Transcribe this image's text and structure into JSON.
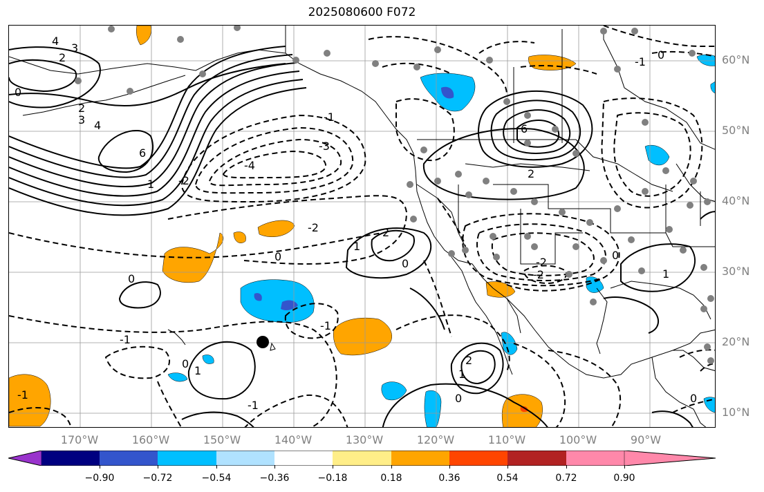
{
  "title": "2025080600 F072",
  "lat_labels": [
    "60°N",
    "50°N",
    "40°N",
    "30°N",
    "20°N",
    "10°N"
  ],
  "lon_labels": [
    "170°W",
    "160°W",
    "150°W",
    "140°W",
    "130°W",
    "120°W",
    "110°W",
    "100°W",
    "90°W"
  ],
  "colorbar": {
    "colors": [
      "#9933cc",
      "#000080",
      "#3355cc",
      "#00bfff",
      "#b0e2ff",
      "#ffffff",
      "#ffee88",
      "#ffa500",
      "#ff4500",
      "#b22222",
      "#ff88aa"
    ],
    "tick_labels": [
      "−0.90",
      "−0.72",
      "−0.54",
      "−0.36",
      "−0.18",
      "0.18",
      "0.36",
      "0.54",
      "0.72",
      "0.90"
    ]
  },
  "contour_labels": {
    "pos_6_w": "6",
    "pos_6_ne": "6",
    "pos_4_nw": "4",
    "pos_3_nw": "3",
    "pos_2_nw": "2",
    "pos_4_w": "4",
    "pos_3_w": "3",
    "pos_2_w": "2",
    "zero_w": "0",
    "one_w": "1",
    "neg_4": "-4",
    "neg_3": "-3",
    "neg_1_a": "-1",
    "neg_2_a": "-2",
    "neg_1_b": "-1",
    "neg_2_b": "-2",
    "neg_2_c": "-2",
    "neg_2_d": "-2",
    "zero_mid": "0",
    "pos_2_mid": "2",
    "pos_1_mid": "1",
    "zero_c": "0",
    "neg_1_c": "-1",
    "pos_2_s": "2",
    "zero_s": "0",
    "pos_1_sw": "1",
    "zero_sw": "0",
    "zero_sw2": "0",
    "neg_1_sw": "-1",
    "pos_1_e": "1",
    "zero_e": "0",
    "zero_ne": "0",
    "neg_1_ne": "-1",
    "zero_se": "0",
    "neg_1_se": "-1",
    "two_ce": "2",
    "pos_1_se": "1"
  }
}
